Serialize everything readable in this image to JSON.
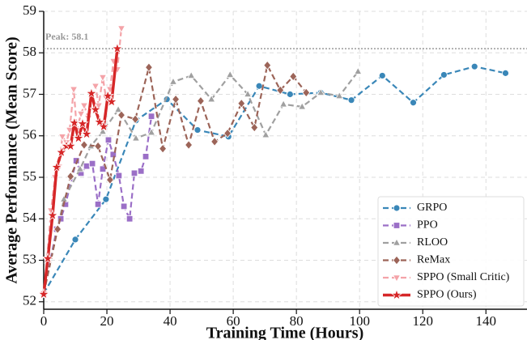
{
  "chart_data": {
    "type": "line",
    "x_label": "Training Time (Hours)",
    "y_label": "Average Performance (Mean Score)",
    "xlim": [
      0,
      153
    ],
    "xticks": [
      0,
      20,
      40,
      60,
      80,
      100,
      120,
      140
    ],
    "ylim": [
      51.82,
      59
    ],
    "yticks": [
      52,
      53,
      54,
      55,
      56,
      57,
      58,
      59
    ],
    "grid": true,
    "legend": "lower right",
    "annotations": [
      {
        "text": "Peak: 58.1",
        "y": 58.1
      }
    ],
    "series": [
      {
        "name": "GRPO",
        "color": "#3a87b8",
        "marker": "circle",
        "x": [
          0,
          10,
          19.7,
          29.2,
          39,
          48.7,
          58.5,
          68.2,
          78,
          87.7,
          97.4,
          107.2,
          117,
          126.7,
          136.4,
          146.2
        ],
        "values": [
          52.2,
          53.5,
          54.47,
          56.37,
          56.88,
          56.14,
          55.98,
          57.2,
          57.0,
          57.04,
          56.86,
          57.45,
          56.8,
          57.47,
          57.67,
          57.51
        ]
      },
      {
        "name": "PPO",
        "color": "#9b6fc7",
        "marker": "square",
        "x": [
          0,
          4.1,
          5.4,
          6.9,
          10.3,
          11.8,
          13.6,
          15.4,
          17.2,
          18.7,
          20.5,
          22,
          23.8,
          25.4,
          27.2,
          28.7,
          30.8,
          32.3,
          34.1
        ],
        "values": [
          52.2,
          53.75,
          54.0,
          54.35,
          55.4,
          55.1,
          55.27,
          55.33,
          54.35,
          55.2,
          55.9,
          55.55,
          55.04,
          54.3,
          54.0,
          55.1,
          55.15,
          55.5,
          56.47
        ]
      },
      {
        "name": "RLOO",
        "color": "#a0a0a0",
        "marker": "triangle",
        "x": [
          0,
          6.4,
          11.5,
          14.9,
          18.7,
          23.6,
          29.2,
          34.1,
          41,
          46.7,
          53.1,
          59,
          64.6,
          70.3,
          75.9,
          81.8,
          87.7,
          93.6,
          99.5
        ],
        "values": [
          52.2,
          54.47,
          55.2,
          55.75,
          56.1,
          56.63,
          55.94,
          56.08,
          57.3,
          57.45,
          56.88,
          57.47,
          57.0,
          56.02,
          56.76,
          56.7,
          57.04,
          56.96,
          57.55
        ]
      },
      {
        "name": "ReMax",
        "color": "#9c6458",
        "marker": "diamond",
        "x": [
          0,
          4.4,
          8.5,
          12.8,
          17.2,
          21,
          24.6,
          29,
          33.3,
          37.7,
          41.8,
          45.9,
          49.7,
          54.1,
          58.2,
          62.6,
          66.7,
          70.8,
          74.9,
          79,
          83.1
        ],
        "values": [
          52.2,
          53.75,
          55.02,
          55.78,
          55.75,
          54.94,
          56.5,
          56.4,
          57.65,
          55.69,
          56.88,
          55.78,
          56.84,
          55.86,
          56.06,
          56.78,
          56.2,
          57.7,
          57.1,
          57.43,
          57.04
        ]
      },
      {
        "name": "SPPO (Small Critic)",
        "color": "#f4a3a8",
        "marker": "triangle-down",
        "x": [
          0,
          1,
          2.3,
          3.6,
          4.9,
          5.9,
          7.2,
          8.2,
          9.5,
          10.5,
          11.8,
          12.8,
          14.1,
          15.1,
          16.4,
          17.4,
          18.7,
          19.7,
          21,
          22.1,
          23.3,
          24.6
        ],
        "values": [
          52.2,
          53.0,
          54.2,
          55.0,
          55.25,
          55.98,
          55.84,
          56.14,
          57.12,
          56.14,
          56.53,
          56.73,
          56.43,
          57.02,
          57.2,
          56.73,
          57.41,
          56.92,
          57.12,
          57.8,
          57.6,
          58.59
        ]
      },
      {
        "name": "SPPO (Ours)",
        "color": "#d62728",
        "marker": "star",
        "x": [
          0,
          1.3,
          2.8,
          4.1,
          5.6,
          7.2,
          8.5,
          9.7,
          11,
          12.3,
          13.6,
          15.1,
          16.4,
          17.7,
          19,
          20.3,
          21.5,
          23.3
        ],
        "values": [
          52.18,
          53.04,
          54.08,
          55.24,
          55.6,
          55.75,
          55.75,
          56.31,
          55.94,
          56.29,
          56.04,
          57.02,
          56.63,
          56.33,
          56.22,
          56.96,
          56.82,
          58.1
        ]
      }
    ]
  }
}
